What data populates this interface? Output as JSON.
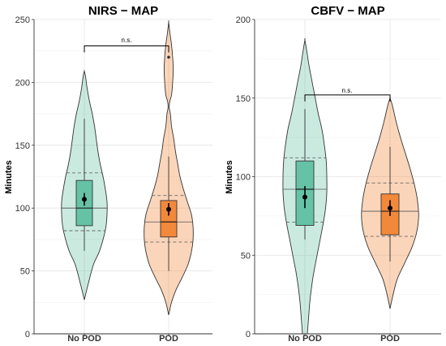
{
  "chart_data": [
    {
      "type": "violin",
      "title": "NIRS − MAP",
      "ylabel": "Minutes",
      "xlabel": "",
      "ylim": [
        0,
        250
      ],
      "yticks": [
        0,
        50,
        100,
        150,
        200,
        250
      ],
      "grid": true,
      "categories": [
        "No POD",
        "POD"
      ],
      "colors": {
        "No POD": "#66c2a5",
        "POD": "#f2883a"
      },
      "groups": [
        {
          "name": "No POD",
          "violin": [
            [
              27,
              0
            ],
            [
              40,
              0.07
            ],
            [
              55,
              0.16
            ],
            [
              65,
              0.26
            ],
            [
              75,
              0.33
            ],
            [
              85,
              0.38
            ],
            [
              95,
              0.4
            ],
            [
              105,
              0.4
            ],
            [
              115,
              0.37
            ],
            [
              125,
              0.33
            ],
            [
              135,
              0.28
            ],
            [
              145,
              0.24
            ],
            [
              155,
              0.21
            ],
            [
              165,
              0.18
            ],
            [
              175,
              0.14
            ],
            [
              185,
              0.09
            ],
            [
              195,
              0.05
            ],
            [
              205,
              0.02
            ],
            [
              209,
              0
            ]
          ],
          "violin_quartiles": [
            82,
            100,
            128
          ],
          "box": {
            "q1": 86,
            "median": 100,
            "q3": 122,
            "whisker_low": 66,
            "whisker_high": 171
          },
          "mean": 107,
          "ci": [
            102,
            112
          ]
        },
        {
          "name": "POD",
          "violin": [
            [
              15,
              0
            ],
            [
              25,
              0.05
            ],
            [
              35,
              0.13
            ],
            [
              45,
              0.24
            ],
            [
              55,
              0.34
            ],
            [
              65,
              0.4
            ],
            [
              75,
              0.43
            ],
            [
              85,
              0.43
            ],
            [
              95,
              0.4
            ],
            [
              105,
              0.33
            ],
            [
              115,
              0.26
            ],
            [
              125,
              0.2
            ],
            [
              135,
              0.16
            ],
            [
              145,
              0.12
            ],
            [
              155,
              0.09
            ],
            [
              165,
              0.05
            ],
            [
              175,
              0.03
            ],
            [
              180,
              0.01
            ],
            [
              185,
              0.02
            ],
            [
              190,
              0.05
            ],
            [
              200,
              0.07
            ],
            [
              210,
              0.08
            ],
            [
              220,
              0.07
            ],
            [
              230,
              0.05
            ],
            [
              240,
              0.02
            ],
            [
              248,
              0
            ]
          ],
          "violin_quartiles": [
            73,
            89,
            110
          ],
          "box": {
            "q1": 77,
            "median": 89,
            "q3": 106,
            "whisker_low": 50,
            "whisker_high": 141
          },
          "mean": 99,
          "ci": [
            94,
            104
          ],
          "outliers": [
            220
          ]
        }
      ],
      "annotations": [
        {
          "text": "n.s.",
          "between": [
            "No POD",
            "POD"
          ],
          "y": 229
        }
      ]
    },
    {
      "type": "violin",
      "title": "CBFV − MAP",
      "ylabel": "Minutes",
      "xlabel": "",
      "ylim": [
        0,
        200
      ],
      "yticks": [
        0,
        50,
        100,
        150,
        200
      ],
      "grid": true,
      "categories": [
        "No POD",
        "POD"
      ],
      "colors": {
        "No POD": "#66c2a5",
        "POD": "#f2883a"
      },
      "groups": [
        {
          "name": "No POD",
          "violin": [
            [
              0,
              0.04
            ],
            [
              10,
              0.06
            ],
            [
              20,
              0.08
            ],
            [
              30,
              0.11
            ],
            [
              40,
              0.15
            ],
            [
              50,
              0.2
            ],
            [
              60,
              0.25
            ],
            [
              70,
              0.3
            ],
            [
              80,
              0.34
            ],
            [
              90,
              0.36
            ],
            [
              100,
              0.36
            ],
            [
              110,
              0.35
            ],
            [
              120,
              0.32
            ],
            [
              130,
              0.28
            ],
            [
              140,
              0.22
            ],
            [
              150,
              0.17
            ],
            [
              160,
              0.12
            ],
            [
              170,
              0.07
            ],
            [
              180,
              0.03
            ],
            [
              187,
              0
            ]
          ],
          "violin_quartiles": [
            71,
            92,
            112
          ],
          "box": {
            "q1": 69,
            "median": 92,
            "q3": 110,
            "whisker_low": 60,
            "whisker_high": 143
          },
          "mean": 87,
          "ci": [
            80,
            94
          ]
        },
        {
          "name": "POD",
          "violin": [
            [
              16,
              0
            ],
            [
              25,
              0.05
            ],
            [
              35,
              0.12
            ],
            [
              45,
              0.24
            ],
            [
              55,
              0.36
            ],
            [
              65,
              0.44
            ],
            [
              75,
              0.47
            ],
            [
              85,
              0.45
            ],
            [
              95,
              0.4
            ],
            [
              105,
              0.33
            ],
            [
              115,
              0.25
            ],
            [
              125,
              0.17
            ],
            [
              135,
              0.1
            ],
            [
              145,
              0.04
            ],
            [
              150,
              0
            ]
          ],
          "violin_quartiles": [
            62,
            78,
            96
          ],
          "box": {
            "q1": 63,
            "median": 78,
            "q3": 89,
            "whisker_low": 46,
            "whisker_high": 119
          },
          "mean": 80,
          "ci": [
            75,
            85
          ]
        }
      ],
      "annotations": [
        {
          "text": "n.s.",
          "between": [
            "No POD",
            "POD"
          ],
          "y": 152
        }
      ]
    }
  ]
}
